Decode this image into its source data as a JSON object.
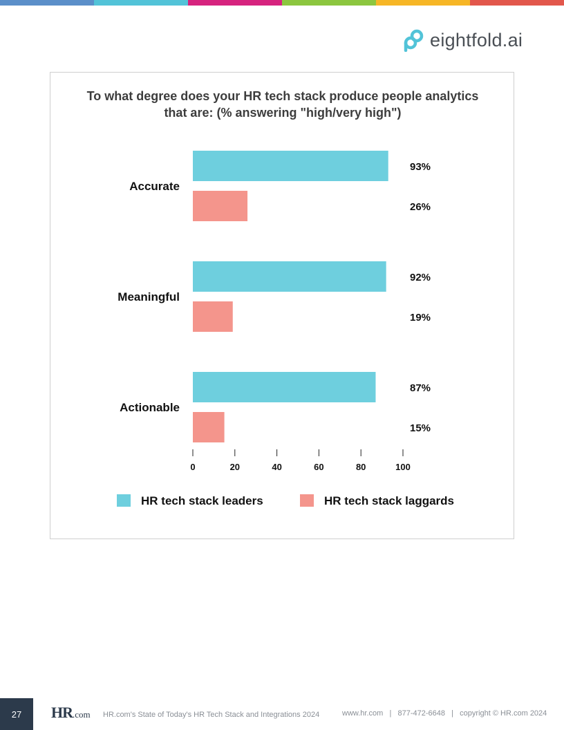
{
  "top_bar_colors": [
    "#5b8fc9",
    "#52c3d8",
    "#d6237e",
    "#8cc63f",
    "#f6b626",
    "#e2574c"
  ],
  "brand": {
    "logo_text": "eightfold.ai",
    "logo_colors": [
      "#52c3d8",
      "#f29a3a"
    ]
  },
  "chart_data": {
    "type": "bar",
    "orientation": "horizontal",
    "title_lines": [
      "To what degree does your HR tech stack produce people analytics",
      "that are: (% answering \"high/very high\")"
    ],
    "categories": [
      "Accurate",
      "Meaningful",
      "Actionable"
    ],
    "series": [
      {
        "name": "HR tech stack leaders",
        "values": [
          93,
          92,
          87
        ],
        "labels": [
          "93%",
          "92%",
          "87%"
        ],
        "color": "#6ecfde"
      },
      {
        "name": "HR tech stack laggards",
        "values": [
          26,
          19,
          15
        ],
        "labels": [
          "26%",
          "19%",
          "15%"
        ],
        "color": "#f4958c"
      }
    ],
    "xlim": [
      0,
      100
    ],
    "xticks": [
      "0",
      "20",
      "40",
      "60",
      "80",
      "100"
    ],
    "grid": false,
    "legend_position": "bottom"
  },
  "footer": {
    "page_number": "27",
    "logo_hr": "HR",
    "logo_com": ".com",
    "report_title": "HR.com's State of Today's HR Tech Stack and Integrations 2024",
    "contact": "www.hr.com   |   877-472-6648   |   copyright © HR.com 2024"
  }
}
